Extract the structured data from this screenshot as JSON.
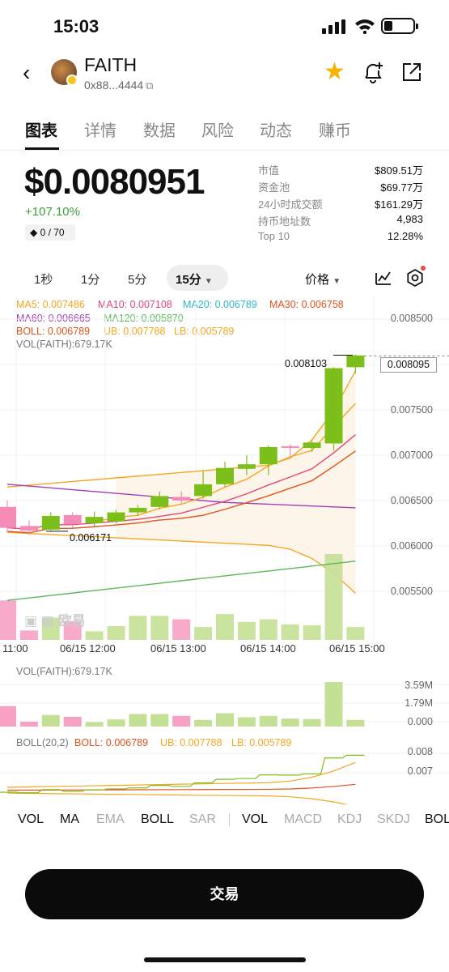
{
  "status_bar": {
    "time": "15:03"
  },
  "token": {
    "name": "FAITH",
    "address": "0x88...4444"
  },
  "tabs": [
    "图表",
    "详情",
    "数据",
    "风险",
    "动态",
    "赚币"
  ],
  "price": {
    "value": "$0.0080951",
    "change": "+107.10%",
    "chip": "0 / 70"
  },
  "stats": [
    {
      "label": "市值",
      "value": "$809.51万"
    },
    {
      "label": "资金池",
      "value": "$69.77万"
    },
    {
      "label": "24小时成交额",
      "value": "$161.29万"
    },
    {
      "label": "持币地址数",
      "value": "4,983"
    },
    {
      "label": "Top 10",
      "value": "12.28%"
    }
  ],
  "intervals": [
    "1秒",
    "1分",
    "5分"
  ],
  "interval_active": "15分",
  "chart_type_label": "价格",
  "legend": {
    "ma5": "MA5: 0.007486",
    "ma10": "MA10: 0.007108",
    "ma20": "MA20: 0.006789",
    "ma30": "MA30: 0.006758",
    "ma60": "MA60: 0.006665",
    "ma120": "MA120: 0.005870",
    "boll": "BOLL: 0.006789",
    "ub": "UB: 0.007788",
    "lb": "LB: 0.005789",
    "vol": "VOL(FAITH):679.17K"
  },
  "watermark": "欧易",
  "colors": {
    "up": "#7cbf1a",
    "down": "#f7a1c4",
    "ma5": "#f5a623",
    "ma10": "#e0457b",
    "ma20": "#2ab7c9",
    "ma30": "#e2521b",
    "ma60": "#a23fb5",
    "ma120": "#5cb85c"
  },
  "chart_data": {
    "type": "candlestick",
    "y_axis_labels": [
      "0.008500",
      "0.008000",
      "0.007500",
      "0.007000",
      "0.006500",
      "0.006000",
      "0.005500"
    ],
    "x_axis_labels": [
      "11:00",
      "06/15 12:00",
      "06/15 13:00",
      "06/15 14:00",
      "06/15 15:00"
    ],
    "last_price_tag": "0.008095",
    "high_marker": "0.008103",
    "low_marker": "0.006171",
    "candles": [
      {
        "o": 0.00643,
        "c": 0.0062,
        "h": 0.0065,
        "l": 0.00615
      },
      {
        "o": 0.00622,
        "c": 0.00617,
        "h": 0.00628,
        "l": 0.00612
      },
      {
        "o": 0.00618,
        "c": 0.00633,
        "h": 0.00637,
        "l": 0.00617
      },
      {
        "o": 0.00634,
        "c": 0.00624,
        "h": 0.00637,
        "l": 0.0062
      },
      {
        "o": 0.00625,
        "c": 0.00632,
        "h": 0.00638,
        "l": 0.00622
      },
      {
        "o": 0.00627,
        "c": 0.00637,
        "h": 0.0064,
        "l": 0.00625
      },
      {
        "o": 0.00637,
        "c": 0.00642,
        "h": 0.00645,
        "l": 0.00633
      },
      {
        "o": 0.00643,
        "c": 0.00655,
        "h": 0.0066,
        "l": 0.0064
      },
      {
        "o": 0.00654,
        "c": 0.0065,
        "h": 0.0066,
        "l": 0.00646
      },
      {
        "o": 0.00655,
        "c": 0.00668,
        "h": 0.00683,
        "l": 0.00652
      },
      {
        "o": 0.00668,
        "c": 0.00686,
        "h": 0.00693,
        "l": 0.00665
      },
      {
        "o": 0.00685,
        "c": 0.0069,
        "h": 0.007,
        "l": 0.00678
      },
      {
        "o": 0.0069,
        "c": 0.00709,
        "h": 0.00711,
        "l": 0.00678
      },
      {
        "o": 0.0071,
        "c": 0.00708,
        "h": 0.00712,
        "l": 0.00697
      },
      {
        "o": 0.00708,
        "c": 0.00714,
        "h": 0.00716,
        "l": 0.00704
      },
      {
        "o": 0.00713,
        "c": 0.00796,
        "h": 0.00797,
        "l": 0.00705
      },
      {
        "o": 0.00797,
        "c": 0.0081,
        "h": 0.00811,
        "l": 0.0079
      }
    ],
    "volume": [
      {
        "v": 0.46,
        "up": false
      },
      {
        "v": 0.11,
        "up": false
      },
      {
        "v": 0.26,
        "up": true
      },
      {
        "v": 0.22,
        "up": false
      },
      {
        "v": 0.1,
        "up": true
      },
      {
        "v": 0.16,
        "up": true
      },
      {
        "v": 0.28,
        "up": true
      },
      {
        "v": 0.28,
        "up": true
      },
      {
        "v": 0.24,
        "up": false
      },
      {
        "v": 0.15,
        "up": true
      },
      {
        "v": 0.3,
        "up": true
      },
      {
        "v": 0.21,
        "up": true
      },
      {
        "v": 0.24,
        "up": true
      },
      {
        "v": 0.18,
        "up": true
      },
      {
        "v": 0.17,
        "up": true
      },
      {
        "v": 1.0,
        "up": true
      },
      {
        "v": 0.15,
        "up": true
      }
    ],
    "volume_axis_labels": [
      "3.59M",
      "1.79M",
      "0.000"
    ],
    "boll_axis_labels": [
      "0.008",
      "0.007"
    ]
  },
  "sub_legend": {
    "vol": "VOL(FAITH):679.17K",
    "boll_head": "BOLL(20,2)",
    "boll": "BOLL: 0.006789",
    "ub": "UB: 0.007788",
    "lb": "LB: 0.005789"
  },
  "bottom_tabs_left": [
    "VOL",
    "MA",
    "EMA",
    "BOLL",
    "SAR"
  ],
  "bottom_tabs_right": [
    "VOL",
    "MACD",
    "KDJ",
    "SKDJ",
    "BOL"
  ],
  "trade_button": "交易"
}
